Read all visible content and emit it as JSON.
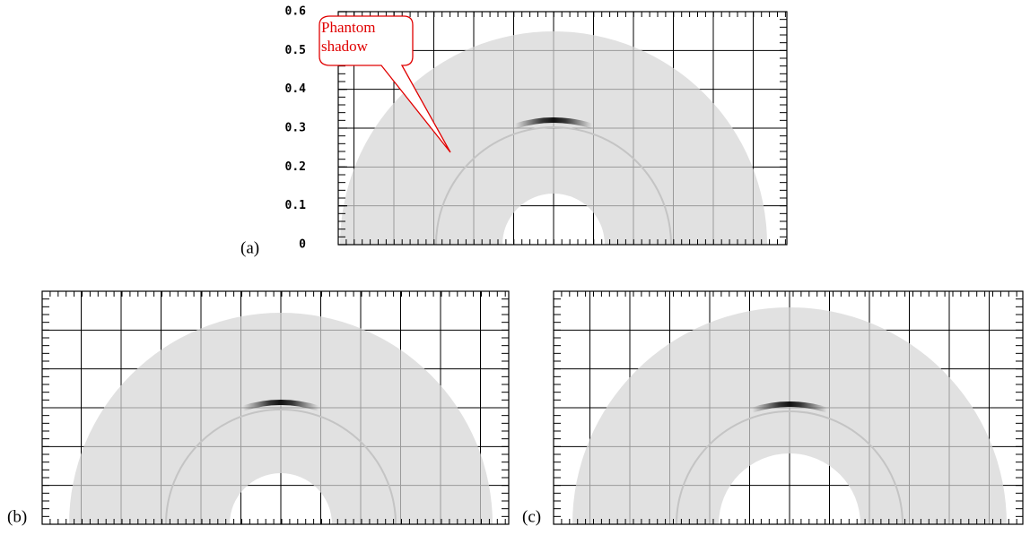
{
  "panels": [
    {
      "label": "(a)",
      "ylim": [
        0,
        0.6
      ],
      "yticks": [
        0,
        0.1,
        0.2,
        0.3,
        0.4,
        0.5,
        0.6
      ],
      "annotation": "Phantom shadow"
    },
    {
      "label": "(b)"
    },
    {
      "label": "(c)"
    }
  ]
}
